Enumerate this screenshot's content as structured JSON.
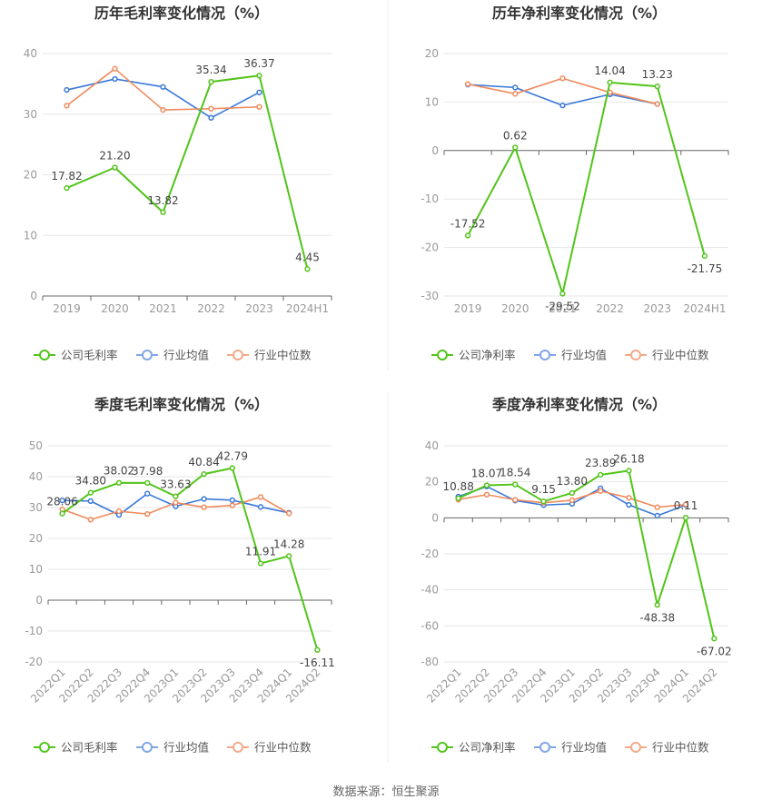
{
  "footer": {
    "source": "数据来源：恒生聚源"
  },
  "colors": {
    "company": "#52c41a",
    "industry_avg": "#3a78d8",
    "industry_median": "#f08a5d",
    "legend_avg": "#7fa6e8",
    "legend_median": "#f4a989",
    "axis_text": "#999999",
    "title_text": "#333333",
    "grid": "#e6e6e6",
    "axis_line": "#666666",
    "divider": "#eeeeee"
  },
  "chart_data": [
    {
      "type": "line",
      "title": "历年毛利率变化情况（%）",
      "categories": [
        "2019",
        "2020",
        "2021",
        "2022",
        "2023",
        "2024H1"
      ],
      "ylim": [
        0,
        40
      ],
      "yticks": [
        0,
        10,
        20,
        30,
        40
      ],
      "grid": true,
      "legend_position": "bottom",
      "series": [
        {
          "name": "公司毛利率",
          "color_key": "company",
          "values": [
            17.82,
            21.2,
            13.82,
            35.34,
            36.37,
            4.45
          ],
          "labels": [
            "17.82",
            "21.20",
            "13.82",
            "35.34",
            "36.37",
            "4.45"
          ]
        },
        {
          "name": "行业均值",
          "color_key": "industry_avg",
          "values": [
            34.0,
            35.8,
            34.5,
            29.4,
            33.6,
            null
          ]
        },
        {
          "name": "行业中位数",
          "color_key": "industry_median",
          "values": [
            31.4,
            37.5,
            30.7,
            30.9,
            31.2,
            null
          ]
        }
      ]
    },
    {
      "type": "line",
      "title": "历年净利率变化情况（%）",
      "categories": [
        "2019",
        "2020",
        "2021",
        "2022",
        "2023",
        "2024H1"
      ],
      "ylim": [
        -30,
        20
      ],
      "yticks": [
        -30,
        -20,
        -10,
        0,
        10,
        20
      ],
      "grid": true,
      "legend_position": "bottom",
      "series": [
        {
          "name": "公司净利率",
          "color_key": "company",
          "values": [
            -17.52,
            0.62,
            -29.52,
            14.04,
            13.23,
            -21.75
          ],
          "labels": [
            "-17.52",
            "0.62",
            "-29.52",
            "14.04",
            "13.23",
            "-21.75"
          ]
        },
        {
          "name": "行业均值",
          "color_key": "industry_avg",
          "values": [
            13.6,
            13.0,
            9.3,
            11.6,
            9.6,
            null
          ]
        },
        {
          "name": "行业中位数",
          "color_key": "industry_median",
          "values": [
            13.7,
            11.7,
            14.9,
            12.0,
            9.6,
            null
          ]
        }
      ]
    },
    {
      "type": "line",
      "title": "季度毛利率变化情况（%）",
      "categories": [
        "2022Q1",
        "2022Q2",
        "2022Q3",
        "2022Q4",
        "2023Q1",
        "2023Q2",
        "2023Q3",
        "2023Q4",
        "2024Q1",
        "2024Q2"
      ],
      "ylim": [
        -20,
        50
      ],
      "yticks": [
        -20,
        -10,
        0,
        10,
        20,
        30,
        40,
        50
      ],
      "grid": true,
      "legend_position": "bottom",
      "series": [
        {
          "name": "公司毛利率",
          "color_key": "company",
          "values": [
            28.06,
            34.8,
            38.02,
            37.98,
            33.63,
            40.84,
            42.79,
            11.91,
            14.28,
            -16.11
          ],
          "labels": [
            "28.06",
            "34.80",
            "38.02",
            "37.98",
            "33.63",
            "40.84",
            "42.79",
            "11.91",
            "14.28",
            "-16.11"
          ]
        },
        {
          "name": "行业均值",
          "color_key": "industry_avg",
          "values": [
            32.3,
            32.1,
            27.6,
            34.5,
            30.4,
            32.8,
            32.4,
            30.2,
            28.3,
            null
          ]
        },
        {
          "name": "行业中位数",
          "color_key": "industry_median",
          "values": [
            29.4,
            26.1,
            28.8,
            27.9,
            31.6,
            30.1,
            30.7,
            33.4,
            28.1,
            null
          ]
        }
      ]
    },
    {
      "type": "line",
      "title": "季度净利率变化情况（%）",
      "categories": [
        "2022Q1",
        "2022Q2",
        "2022Q3",
        "2022Q4",
        "2023Q1",
        "2023Q2",
        "2023Q3",
        "2023Q4",
        "2024Q1",
        "2024Q2"
      ],
      "ylim": [
        -80,
        40
      ],
      "yticks": [
        -80,
        -60,
        -40,
        -20,
        0,
        20,
        40
      ],
      "grid": true,
      "legend_position": "bottom",
      "series": [
        {
          "name": "公司净利率",
          "color_key": "company",
          "values": [
            10.88,
            18.07,
            18.54,
            9.15,
            13.8,
            23.89,
            26.18,
            -48.38,
            0.11,
            -67.02
          ],
          "labels": [
            "10.88",
            "18.07",
            "18.54",
            "9.15",
            "13.80",
            "23.89",
            "26.18",
            "-48.38",
            "0.11",
            "-67.02"
          ]
        },
        {
          "name": "行业均值",
          "color_key": "industry_avg",
          "values": [
            11.8,
            17.4,
            9.6,
            7.1,
            7.8,
            16.4,
            7.2,
            1.2,
            7.1,
            null
          ]
        },
        {
          "name": "行业中位数",
          "color_key": "industry_median",
          "values": [
            10.1,
            12.9,
            10.0,
            8.4,
            9.8,
            14.9,
            11.1,
            5.9,
            7.4,
            null
          ]
        }
      ]
    }
  ]
}
